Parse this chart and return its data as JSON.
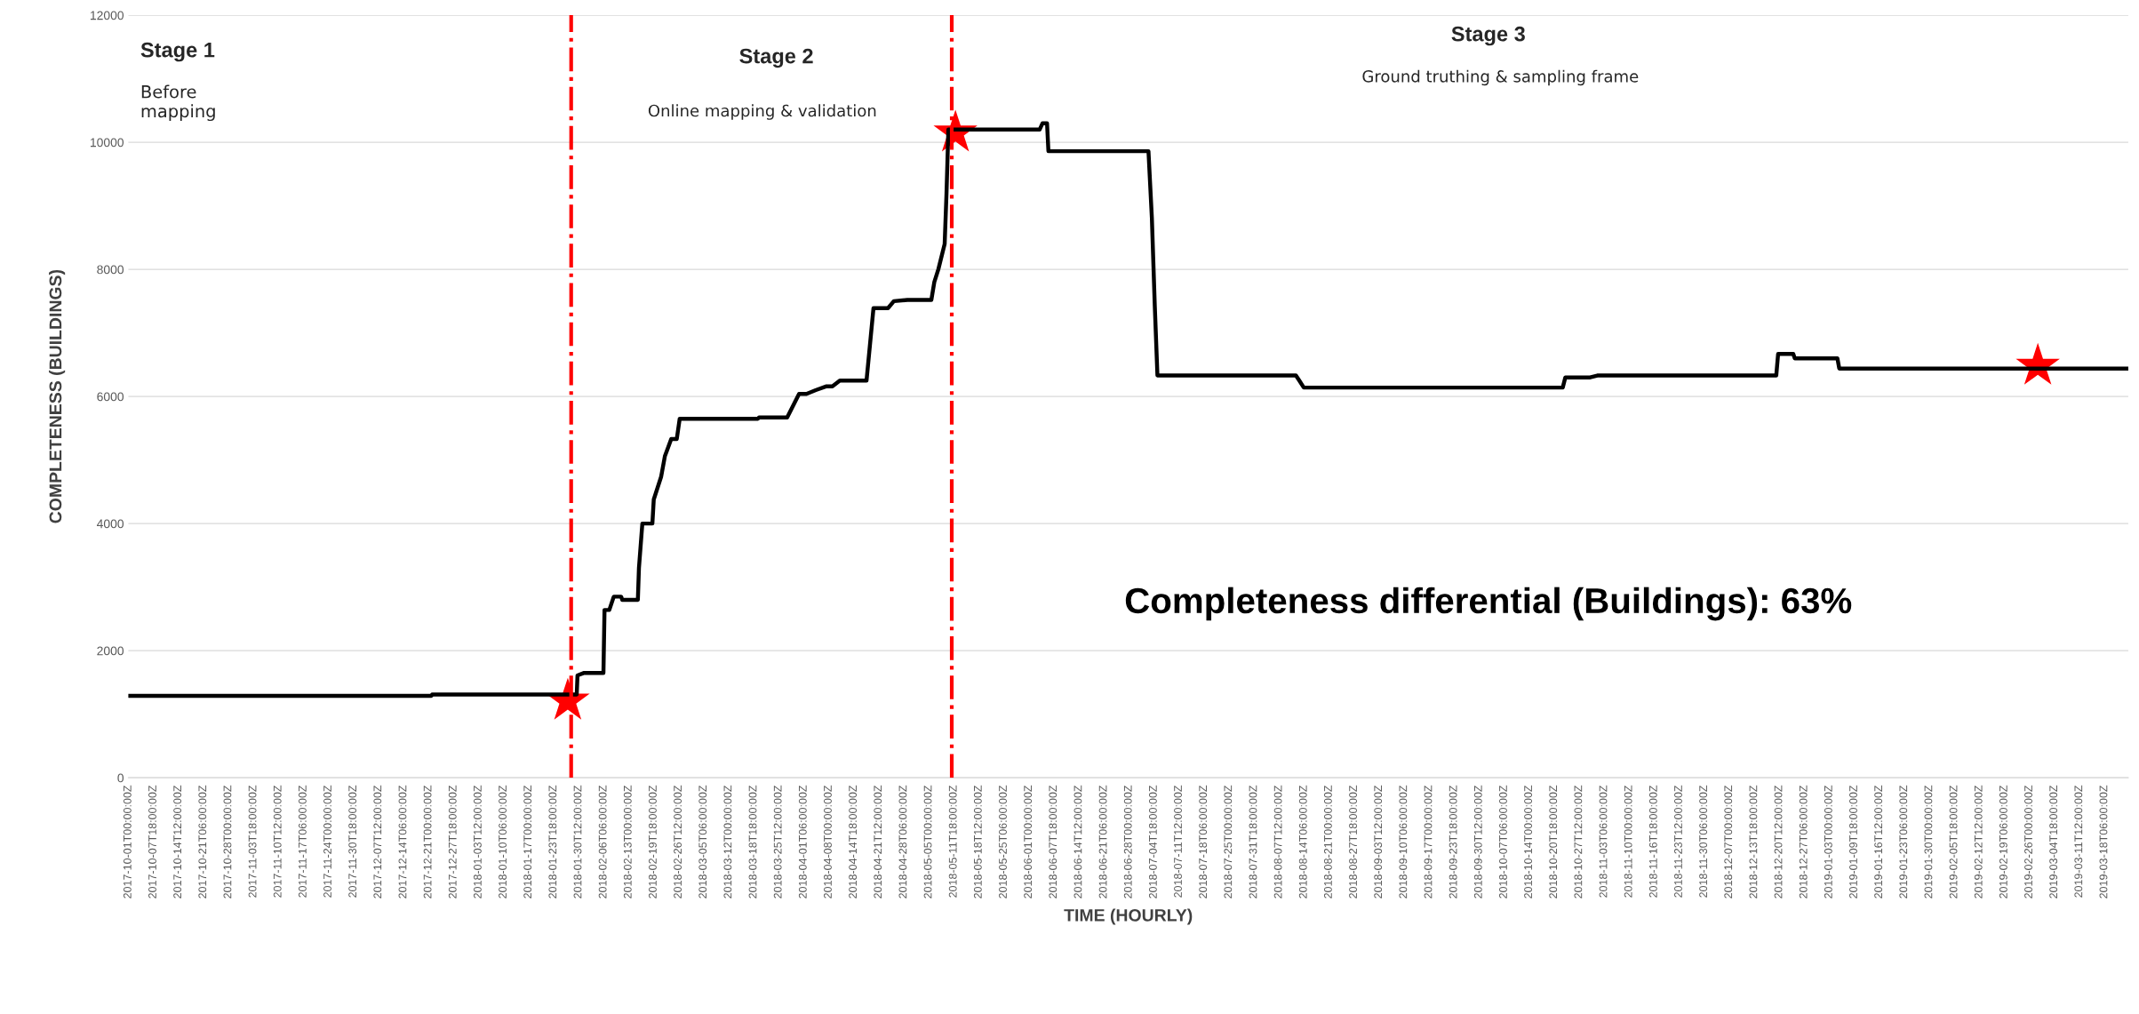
{
  "chart_data": {
    "type": "line",
    "xlabel": "TIME (HOURLY)",
    "ylabel": "COMPLETENESS (BUILDINGS)",
    "annotations": [
      "Stage 1",
      "Before\nmapping",
      "Stage 2",
      "Online mapping & validation",
      "Stage 3",
      "Ground truthing & sampling frame",
      "Completeness differential (Buildings): 63%"
    ],
    "series": [
      {
        "type": "line",
        "color": "#000000",
        "line_style": "solid",
        "marker": "none",
        "x": [
          "2017-10-01T00:00",
          "2017-12-21T19:00",
          "2017-12-22T00:00",
          "2018-01-30T00:00",
          "2018-01-30T05:00",
          "2018-02-01T00:00",
          "2018-02-06T05:00",
          "2018-02-06T12:00",
          "2018-02-07T19:00",
          "2018-02-09T00:00",
          "2018-02-11T00:00",
          "2018-02-11T07:00",
          "2018-02-15T12:00",
          "2018-02-15T19:00",
          "2018-02-16T17:00",
          "2018-02-19T10:00",
          "2018-02-19T19:00",
          "2018-02-21T19:00",
          "2018-02-22T19:00",
          "2018-02-24T12:00",
          "2018-02-26T00:00",
          "2018-02-26T19:00",
          "2018-03-19T22:00",
          "2018-03-20T05:00",
          "2018-03-27T19:00",
          "2018-03-31T00:00",
          "2018-04-02T00:00",
          "2018-04-04T12:00",
          "2018-04-07T10:00",
          "2018-04-09T00:00",
          "2018-04-11T00:00",
          "2018-04-18T05:00",
          "2018-04-20T02:00",
          "2018-04-24T00:00",
          "2018-04-25T14:00",
          "2018-04-29T05:00",
          "2018-05-05T17:00",
          "2018-05-06T12:00",
          "2018-05-07T14:00",
          "2018-05-09T07:00",
          "2018-05-09T19:00",
          "2018-05-10T07:00",
          "2018-06-03T22:00",
          "2018-06-04T17:00",
          "2018-06-05T22:00",
          "2018-06-06T07:00",
          "2018-07-03T07:00",
          "2018-07-04T05:00",
          "2018-07-05T00:00",
          "2018-07-05T17:00",
          "2018-08-12T02:00",
          "2018-08-13T00:00",
          "2018-08-14T05:00",
          "2018-10-23T02:00",
          "2018-10-23T19:00",
          "2018-10-30T12:00",
          "2018-11-01T10:00",
          "2018-12-19T17:00",
          "2018-12-20T05:00",
          "2018-12-24T07:00",
          "2018-12-24T17:00",
          "2019-01-05T05:00",
          "2019-01-05T17:00",
          "2019-03-24T17:00"
        ],
        "values": [
          1290,
          1290,
          1310,
          1310,
          1610,
          1650,
          1650,
          2640,
          2640,
          2850,
          2850,
          2800,
          2800,
          3300,
          4000,
          4000,
          4380,
          4740,
          5060,
          5330,
          5330,
          5650,
          5650,
          5670,
          5670,
          6040,
          6040,
          6100,
          6160,
          6160,
          6250,
          6250,
          7390,
          7390,
          7500,
          7520,
          7520,
          7800,
          8000,
          8400,
          9200,
          10200,
          10200,
          10300,
          10300,
          9860,
          9860,
          8810,
          7420,
          6330,
          6330,
          6250,
          6140,
          6140,
          6300,
          6300,
          6330,
          6330,
          6670,
          6670,
          6600,
          6600,
          6440,
          6440
        ]
      },
      {
        "type": "scatter",
        "color": "#ff0000",
        "marker": "star",
        "x": [
          "2018-01-27T14:00",
          "2018-05-12T05:00",
          "2019-02-28T07:00"
        ],
        "values": [
          1210,
          10150,
          6480
        ]
      }
    ],
    "ref_lines": [
      {
        "axis": "x",
        "value": "2018-01-28T12:00",
        "color": "#ff0000",
        "line_style": "dashdot"
      },
      {
        "axis": "x",
        "value": "2018-05-11T05:00",
        "color": "#ff0000",
        "line_style": "dashdot"
      }
    ],
    "xlim": [
      "2017-10-01T00:00",
      "2019-03-24T17:00"
    ],
    "ylim": [
      0,
      12000
    ],
    "yticks": [
      0,
      2000,
      4000,
      6000,
      8000,
      10000,
      12000
    ],
    "xticks": [
      {
        "value": "2017-10-01T00:00",
        "label": "2017-10-01T00:00:00Z"
      },
      {
        "value": "2017-10-07T18:00",
        "label": "2017-10-07T18:00:00Z"
      },
      {
        "value": "2017-10-14T12:00",
        "label": "2017-10-14T12:00:00Z"
      },
      {
        "value": "2017-10-21T06:00",
        "label": "2017-10-21T06:00:00Z"
      },
      {
        "value": "2017-10-28T00:00",
        "label": "2017-10-28T00:00:00Z"
      },
      {
        "value": "2017-11-03T18:00",
        "label": "2017-11-03T18:00:00Z"
      },
      {
        "value": "2017-11-10T12:00",
        "label": "2017-11-10T12:00:00Z"
      },
      {
        "value": "2017-11-17T06:00",
        "label": "2017-11-17T06:00:00Z"
      },
      {
        "value": "2017-11-24T00:00",
        "label": "2017-11-24T00:00:00Z"
      },
      {
        "value": "2017-11-30T18:00",
        "label": "2017-11-30T18:00:00Z"
      },
      {
        "value": "2017-12-07T12:00",
        "label": "2017-12-07T12:00:00Z"
      },
      {
        "value": "2017-12-14T06:00",
        "label": "2017-12-14T06:00:00Z"
      },
      {
        "value": "2017-12-21T00:00",
        "label": "2017-12-21T00:00:00Z"
      },
      {
        "value": "2017-12-27T18:00",
        "label": "2017-12-27T18:00:00Z"
      },
      {
        "value": "2018-01-03T12:00",
        "label": "2018-01-03T12:00:00Z"
      },
      {
        "value": "2018-01-10T06:00",
        "label": "2018-01-10T06:00:00Z"
      },
      {
        "value": "2018-01-17T00:00",
        "label": "2018-01-17T00:00:00Z"
      },
      {
        "value": "2018-01-23T18:00",
        "label": "2018-01-23T18:00:00Z"
      },
      {
        "value": "2018-01-30T12:00",
        "label": "2018-01-30T12:00:00Z"
      },
      {
        "value": "2018-02-06T06:00",
        "label": "2018-02-06T06:00:00Z"
      },
      {
        "value": "2018-02-13T00:00",
        "label": "2018-02-13T00:00:00Z"
      },
      {
        "value": "2018-02-19T18:00",
        "label": "2018-02-19T18:00:00Z"
      },
      {
        "value": "2018-02-26T12:00",
        "label": "2018-02-26T12:00:00Z"
      },
      {
        "value": "2018-03-05T06:00",
        "label": "2018-03-05T06:00:00Z"
      },
      {
        "value": "2018-03-12T00:00",
        "label": "2018-03-12T00:00:00Z"
      },
      {
        "value": "2018-03-18T18:00",
        "label": "2018-03-18T18:00:00Z"
      },
      {
        "value": "2018-03-25T12:00",
        "label": "2018-03-25T12:00:00Z"
      },
      {
        "value": "2018-04-01T06:00",
        "label": "2018-04-01T06:00:00Z"
      },
      {
        "value": "2018-04-08T00:00",
        "label": "2018-04-08T00:00:00Z"
      },
      {
        "value": "2018-04-14T18:00",
        "label": "2018-04-14T18:00:00Z"
      },
      {
        "value": "2018-04-21T12:00",
        "label": "2018-04-21T12:00:00Z"
      },
      {
        "value": "2018-04-28T06:00",
        "label": "2018-04-28T06:00:00Z"
      },
      {
        "value": "2018-05-05T00:00",
        "label": "2018-05-05T00:00:00Z"
      },
      {
        "value": "2018-05-11T18:00",
        "label": "2018-05-11T18:00:00Z"
      },
      {
        "value": "2018-05-18T12:00",
        "label": "2018-05-18T12:00:00Z"
      },
      {
        "value": "2018-05-25T06:00",
        "label": "2018-05-25T06:00:00Z"
      },
      {
        "value": "2018-06-01T00:00",
        "label": "2018-06-01T00:00:00Z"
      },
      {
        "value": "2018-06-07T18:00",
        "label": "2018-06-07T18:00:00Z"
      },
      {
        "value": "2018-06-14T12:00",
        "label": "2018-06-14T12:00:00Z"
      },
      {
        "value": "2018-06-21T06:00",
        "label": "2018-06-21T06:00:00Z"
      },
      {
        "value": "2018-06-28T00:00",
        "label": "2018-06-28T00:00:00Z"
      },
      {
        "value": "2018-07-04T18:00",
        "label": "2018-07-04T18:00:00Z"
      },
      {
        "value": "2018-07-11T12:00",
        "label": "2018-07-11T12:00:00Z"
      },
      {
        "value": "2018-07-18T06:00",
        "label": "2018-07-18T06:00:00Z"
      },
      {
        "value": "2018-07-25T00:00",
        "label": "2018-07-25T00:00:00Z"
      },
      {
        "value": "2018-07-31T18:00",
        "label": "2018-07-31T18:00:00Z"
      },
      {
        "value": "2018-08-07T12:00",
        "label": "2018-08-07T12:00:00Z"
      },
      {
        "value": "2018-08-14T06:00",
        "label": "2018-08-14T06:00:00Z"
      },
      {
        "value": "2018-08-21T00:00",
        "label": "2018-08-21T00:00:00Z"
      },
      {
        "value": "2018-08-27T18:00",
        "label": "2018-08-27T18:00:00Z"
      },
      {
        "value": "2018-09-03T12:00",
        "label": "2018-09-03T12:00:00Z"
      },
      {
        "value": "2018-09-10T06:00",
        "label": "2018-09-10T06:00:00Z"
      },
      {
        "value": "2018-09-17T00:00",
        "label": "2018-09-17T00:00:00Z"
      },
      {
        "value": "2018-09-23T18:00",
        "label": "2018-09-23T18:00:00Z"
      },
      {
        "value": "2018-09-30T12:00",
        "label": "2018-09-30T12:00:00Z"
      },
      {
        "value": "2018-10-07T06:00",
        "label": "2018-10-07T06:00:00Z"
      },
      {
        "value": "2018-10-14T00:00",
        "label": "2018-10-14T00:00:00Z"
      },
      {
        "value": "2018-10-20T18:00",
        "label": "2018-10-20T18:00:00Z"
      },
      {
        "value": "2018-10-27T12:00",
        "label": "2018-10-27T12:00:00Z"
      },
      {
        "value": "2018-11-03T06:00",
        "label": "2018-11-03T06:00:00Z"
      },
      {
        "value": "2018-11-10T00:00",
        "label": "2018-11-10T00:00:00Z"
      },
      {
        "value": "2018-11-16T18:00",
        "label": "2018-11-16T18:00:00Z"
      },
      {
        "value": "2018-11-23T12:00",
        "label": "2018-11-23T12:00:00Z"
      },
      {
        "value": "2018-11-30T06:00",
        "label": "2018-11-30T06:00:00Z"
      },
      {
        "value": "2018-12-07T00:00",
        "label": "2018-12-07T00:00:00Z"
      },
      {
        "value": "2018-12-13T18:00",
        "label": "2018-12-13T18:00:00Z"
      },
      {
        "value": "2018-12-20T12:00",
        "label": "2018-12-20T12:00:00Z"
      },
      {
        "value": "2018-12-27T06:00",
        "label": "2018-12-27T06:00:00Z"
      },
      {
        "value": "2019-01-03T00:00",
        "label": "2019-01-03T00:00:00Z"
      },
      {
        "value": "2019-01-09T18:00",
        "label": "2019-01-09T18:00:00Z"
      },
      {
        "value": "2019-01-16T12:00",
        "label": "2019-01-16T12:00:00Z"
      },
      {
        "value": "2019-01-23T06:00",
        "label": "2019-01-23T06:00:00Z"
      },
      {
        "value": "2019-01-30T00:00",
        "label": "2019-01-30T00:00:00Z"
      },
      {
        "value": "2019-02-05T18:00",
        "label": "2019-02-05T18:00:00Z"
      },
      {
        "value": "2019-02-12T12:00",
        "label": "2019-02-12T12:00:00Z"
      },
      {
        "value": "2019-02-19T06:00",
        "label": "2019-02-19T06:00:00Z"
      },
      {
        "value": "2019-02-26T00:00",
        "label": "2019-02-26T00:00:00Z"
      },
      {
        "value": "2019-03-04T18:00",
        "label": "2019-03-04T18:00:00Z"
      },
      {
        "value": "2019-03-11T12:00",
        "label": "2019-03-11T12:00:00Z"
      },
      {
        "value": "2019-03-18T06:00",
        "label": "2019-03-18T06:00:00Z"
      }
    ],
    "grid": "y"
  }
}
